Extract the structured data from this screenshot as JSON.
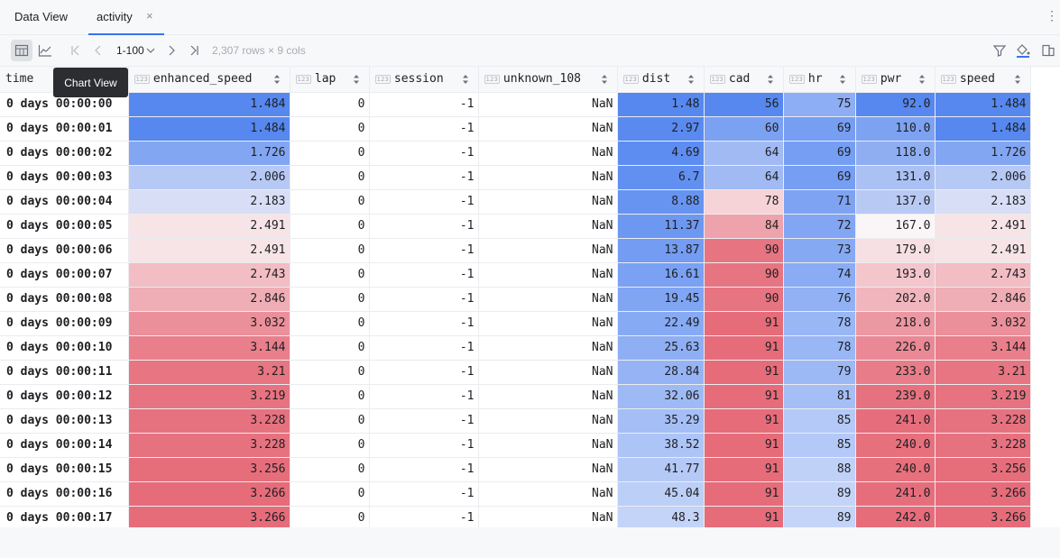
{
  "tabs": {
    "title": "Data View",
    "activity": "activity",
    "close_glyph": "×",
    "more_glyph": "⋮"
  },
  "toolbar": {
    "range": "1-100",
    "summary": "2,307 rows × 9 cols"
  },
  "tooltip": "Chart View",
  "colors": {
    "accent": "#3574f0"
  },
  "columns": [
    {
      "name": "time",
      "typed": false
    },
    {
      "name": "enhanced_speed",
      "typed": true
    },
    {
      "name": "lap",
      "typed": true
    },
    {
      "name": "session",
      "typed": true
    },
    {
      "name": "unknown_108",
      "typed": true
    },
    {
      "name": "dist",
      "typed": true
    },
    {
      "name": "cad",
      "typed": true
    },
    {
      "name": "hr",
      "typed": true
    },
    {
      "name": "pwr",
      "typed": true
    },
    {
      "name": "speed",
      "typed": true
    }
  ],
  "type_badge": "123",
  "rows": [
    [
      "0 days 00:00:00",
      "1.484",
      "0",
      "-1",
      "NaN",
      "1.48",
      "56",
      "75",
      "92.0",
      "1.484"
    ],
    [
      "0 days 00:00:01",
      "1.484",
      "0",
      "-1",
      "NaN",
      "2.97",
      "60",
      "69",
      "110.0",
      "1.484"
    ],
    [
      "0 days 00:00:02",
      "1.726",
      "0",
      "-1",
      "NaN",
      "4.69",
      "64",
      "69",
      "118.0",
      "1.726"
    ],
    [
      "0 days 00:00:03",
      "2.006",
      "0",
      "-1",
      "NaN",
      "6.7",
      "64",
      "69",
      "131.0",
      "2.006"
    ],
    [
      "0 days 00:00:04",
      "2.183",
      "0",
      "-1",
      "NaN",
      "8.88",
      "78",
      "71",
      "137.0",
      "2.183"
    ],
    [
      "0 days 00:00:05",
      "2.491",
      "0",
      "-1",
      "NaN",
      "11.37",
      "84",
      "72",
      "167.0",
      "2.491"
    ],
    [
      "0 days 00:00:06",
      "2.491",
      "0",
      "-1",
      "NaN",
      "13.87",
      "90",
      "73",
      "179.0",
      "2.491"
    ],
    [
      "0 days 00:00:07",
      "2.743",
      "0",
      "-1",
      "NaN",
      "16.61",
      "90",
      "74",
      "193.0",
      "2.743"
    ],
    [
      "0 days 00:00:08",
      "2.846",
      "0",
      "-1",
      "NaN",
      "19.45",
      "90",
      "76",
      "202.0",
      "2.846"
    ],
    [
      "0 days 00:00:09",
      "3.032",
      "0",
      "-1",
      "NaN",
      "22.49",
      "91",
      "78",
      "218.0",
      "3.032"
    ],
    [
      "0 days 00:00:10",
      "3.144",
      "0",
      "-1",
      "NaN",
      "25.63",
      "91",
      "78",
      "226.0",
      "3.144"
    ],
    [
      "0 days 00:00:11",
      "3.21",
      "0",
      "-1",
      "NaN",
      "28.84",
      "91",
      "79",
      "233.0",
      "3.21"
    ],
    [
      "0 days 00:00:12",
      "3.219",
      "0",
      "-1",
      "NaN",
      "32.06",
      "91",
      "81",
      "239.0",
      "3.219"
    ],
    [
      "0 days 00:00:13",
      "3.228",
      "0",
      "-1",
      "NaN",
      "35.29",
      "91",
      "85",
      "241.0",
      "3.228"
    ],
    [
      "0 days 00:00:14",
      "3.228",
      "0",
      "-1",
      "NaN",
      "38.52",
      "91",
      "85",
      "240.0",
      "3.228"
    ],
    [
      "0 days 00:00:15",
      "3.256",
      "0",
      "-1",
      "NaN",
      "41.77",
      "91",
      "88",
      "240.0",
      "3.256"
    ],
    [
      "0 days 00:00:16",
      "3.266",
      "0",
      "-1",
      "NaN",
      "45.04",
      "91",
      "89",
      "241.0",
      "3.266"
    ],
    [
      "0 days 00:00:17",
      "3.266",
      "0",
      "-1",
      "NaN",
      "48.3",
      "91",
      "89",
      "242.0",
      "3.266"
    ]
  ]
}
